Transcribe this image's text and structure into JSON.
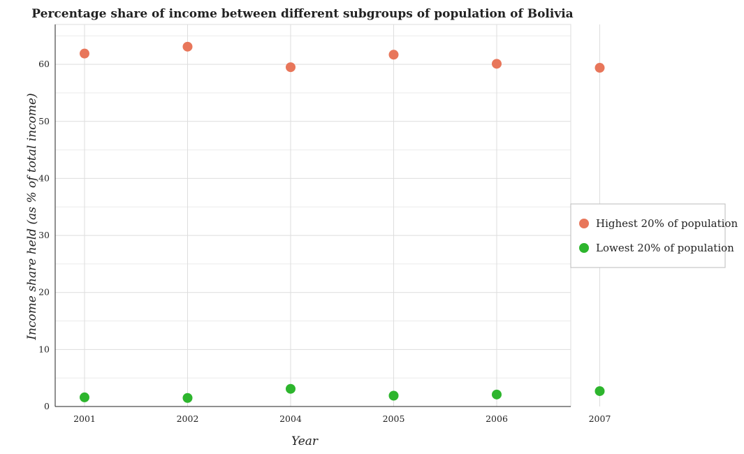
{
  "chart_data": {
    "type": "scatter",
    "title": "Percentage share of income between different subgroups of population of Bolivia",
    "xlabel": "Year",
    "ylabel": "Income share held (as % of total income)",
    "categories": [
      "2001",
      "2002",
      "2004",
      "2005",
      "2006",
      "2007"
    ],
    "yticks": [
      "0",
      "10",
      "20",
      "30",
      "40",
      "50",
      "60"
    ],
    "ylim": [
      0,
      67
    ],
    "grid": true,
    "legend_position": "right",
    "series": [
      {
        "name": "Highest 20% of population",
        "color": "#e8765a",
        "values": [
          61.9,
          63.1,
          59.5,
          61.7,
          60.1,
          59.4
        ]
      },
      {
        "name": "Lowest 20% of population",
        "color": "#2db52d",
        "values": [
          1.6,
          1.5,
          3.1,
          1.9,
          2.1,
          2.7
        ]
      }
    ]
  }
}
